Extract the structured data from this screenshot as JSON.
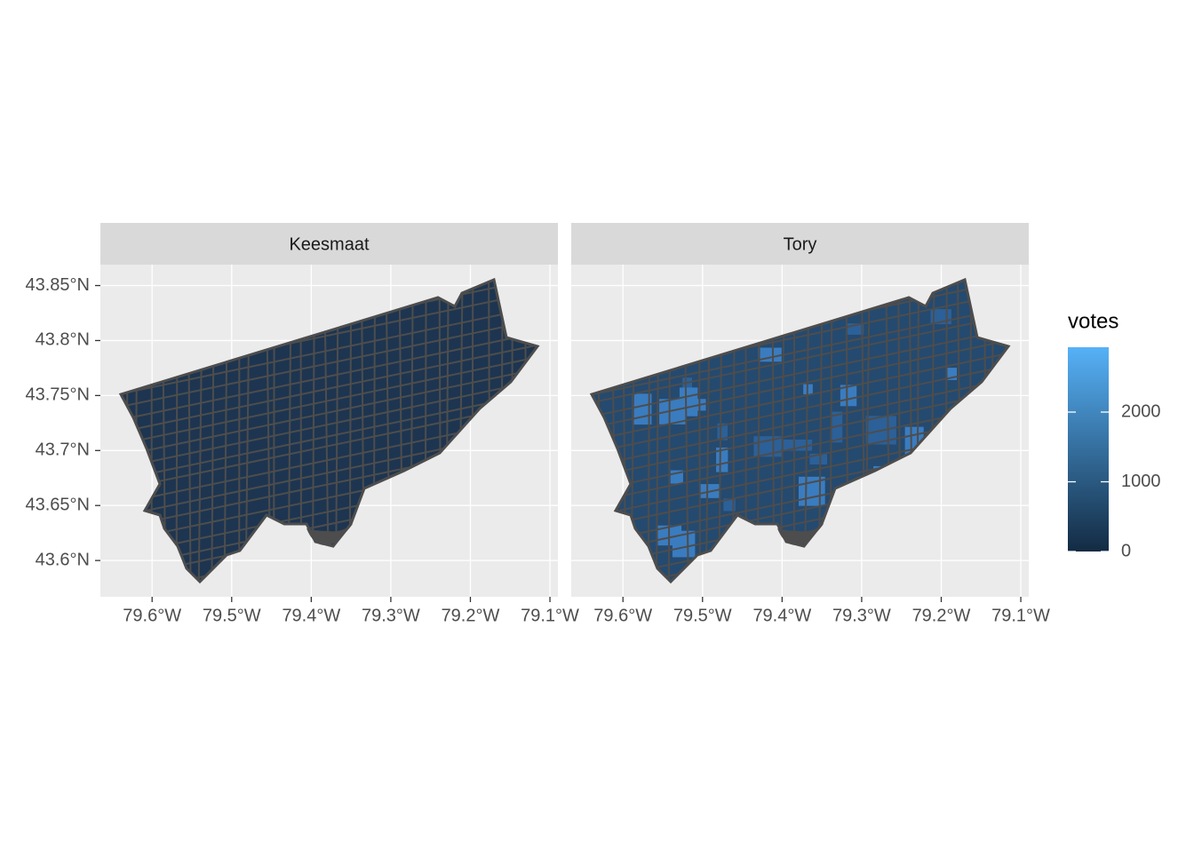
{
  "chart_data": {
    "type": "map",
    "facets": [
      "Keesmaat",
      "Tory"
    ],
    "xlim": [
      -79.665,
      -79.09
    ],
    "ylim": [
      43.567,
      43.869
    ],
    "xticks": [
      {
        "value": -79.6,
        "label": "79.6°W"
      },
      {
        "value": -79.5,
        "label": "79.5°W"
      },
      {
        "value": -79.4,
        "label": "79.4°W"
      },
      {
        "value": -79.3,
        "label": "79.3°W"
      },
      {
        "value": -79.2,
        "label": "79.2°W"
      },
      {
        "value": -79.1,
        "label": "79.1°W"
      }
    ],
    "yticks": [
      {
        "value": 43.6,
        "label": "43.6°N"
      },
      {
        "value": 43.65,
        "label": "43.65°N"
      },
      {
        "value": 43.7,
        "label": "43.7°N"
      },
      {
        "value": 43.75,
        "label": "43.75°N"
      },
      {
        "value": 43.8,
        "label": "43.8°N"
      },
      {
        "value": 43.85,
        "label": "43.85°N"
      }
    ],
    "legend": {
      "title": "votes",
      "ticks": [
        0,
        1000,
        2000
      ],
      "limits": [
        0,
        2930
      ],
      "colors": [
        "#132B43",
        "#56B1F7"
      ]
    },
    "grid": true
  }
}
